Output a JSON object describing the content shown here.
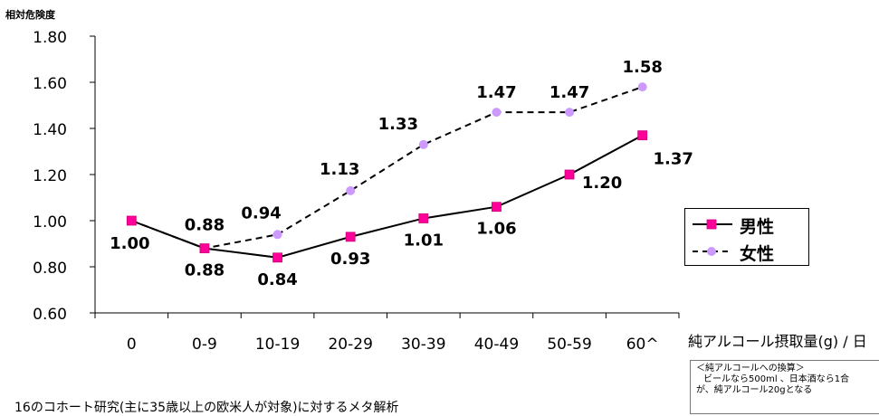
{
  "chart_data": {
    "type": "line",
    "ylabel": "相対危険度",
    "xlabel": "純アルコール摂取量(g) / 日",
    "ylim": [
      0.6,
      1.8
    ],
    "yticks": [
      "1.80",
      "1.60",
      "1.40",
      "1.20",
      "1.00",
      "0.80",
      "0.60"
    ],
    "categories": [
      "0",
      "0-9",
      "10-19",
      "20-29",
      "30-39",
      "40-49",
      "50-59",
      "60^"
    ],
    "legend_position": "right",
    "grid": false,
    "series": [
      {
        "name": "男性",
        "color": "#000000",
        "marker_color": "#ff0099",
        "marker": "square",
        "line_style": "solid",
        "values": [
          1.0,
          0.88,
          0.84,
          0.93,
          1.01,
          1.06,
          1.2,
          1.37
        ],
        "labels": [
          "1.00",
          "0.88",
          "0.84",
          "0.93",
          "1.01",
          "1.06",
          "1.20",
          "1.37"
        ]
      },
      {
        "name": "女性",
        "color": "#000000",
        "marker_color": "#cc99ff",
        "marker": "circle",
        "line_style": "dashed",
        "values": [
          1.0,
          0.88,
          0.94,
          1.13,
          1.33,
          1.47,
          1.47,
          1.58
        ],
        "labels": [
          "",
          "0.88",
          "0.94",
          "1.13",
          "1.33",
          "1.47",
          "1.47",
          "1.58"
        ]
      }
    ]
  },
  "note": {
    "lines": [
      "＜純アルコールへの換算＞",
      "ビールなら500ml 、日本酒なら1合",
      "が、純アルコール20gとなる"
    ]
  },
  "footnote": "16のコホート研究(主に35歳以上の欧米人が対象)に対するメタ解析"
}
